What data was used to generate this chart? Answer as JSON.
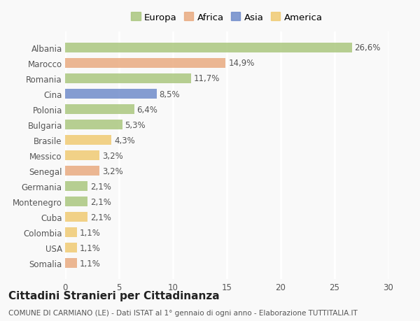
{
  "categories": [
    "Albania",
    "Marocco",
    "Romania",
    "Cina",
    "Polonia",
    "Bulgaria",
    "Brasile",
    "Messico",
    "Senegal",
    "Germania",
    "Montenegro",
    "Cuba",
    "Colombia",
    "USA",
    "Somalia"
  ],
  "values": [
    26.6,
    14.9,
    11.7,
    8.5,
    6.4,
    5.3,
    4.3,
    3.2,
    3.2,
    2.1,
    2.1,
    2.1,
    1.1,
    1.1,
    1.1
  ],
  "labels": [
    "26,6%",
    "14,9%",
    "11,7%",
    "8,5%",
    "6,4%",
    "5,3%",
    "4,3%",
    "3,2%",
    "3,2%",
    "2,1%",
    "2,1%",
    "2,1%",
    "1,1%",
    "1,1%",
    "1,1%"
  ],
  "colors": [
    "#a8c57a",
    "#e8a87c",
    "#a8c57a",
    "#6b88c9",
    "#a8c57a",
    "#a8c57a",
    "#f0c96e",
    "#f0c96e",
    "#e8a87c",
    "#a8c57a",
    "#a8c57a",
    "#f0c96e",
    "#f0c96e",
    "#f0c96e",
    "#e8a87c"
  ],
  "legend_labels": [
    "Europa",
    "Africa",
    "Asia",
    "America"
  ],
  "legend_colors": [
    "#a8c57a",
    "#e8a87c",
    "#6b88c9",
    "#f0c96e"
  ],
  "title": "Cittadini Stranieri per Cittadinanza",
  "subtitle": "COMUNE DI CARMIANO (LE) - Dati ISTAT al 1° gennaio di ogni anno - Elaborazione TUTTITALIA.IT",
  "xlim": [
    0,
    30
  ],
  "xticks": [
    0,
    5,
    10,
    15,
    20,
    25,
    30
  ],
  "background_color": "#f9f9f9",
  "bar_alpha": 0.82,
  "grid_color": "#ffffff",
  "label_fontsize": 8.5,
  "tick_fontsize": 8.5,
  "title_fontsize": 11,
  "subtitle_fontsize": 7.5,
  "legend_fontsize": 9.5
}
